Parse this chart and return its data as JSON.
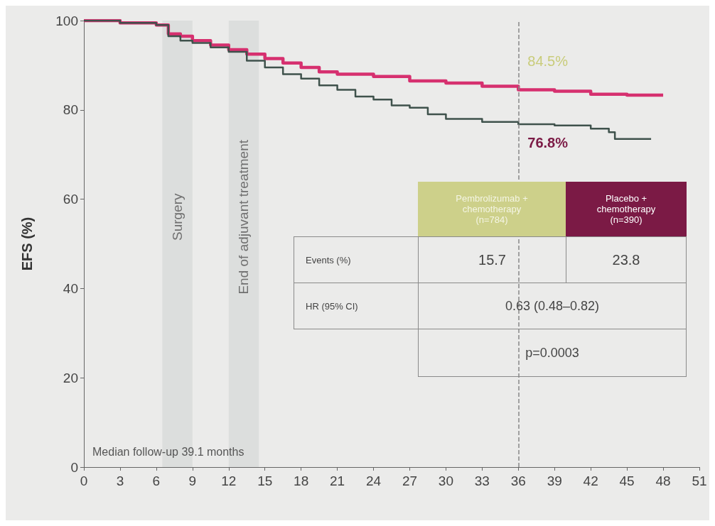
{
  "chart_data": {
    "type": "step",
    "ylabel": "EFS (%)",
    "xlim": [
      0,
      51
    ],
    "xticks": [
      0,
      3,
      6,
      9,
      12,
      15,
      18,
      21,
      24,
      27,
      30,
      33,
      36,
      39,
      42,
      45,
      48,
      51
    ],
    "ylim": [
      0,
      100
    ],
    "yticks": [
      0,
      20,
      40,
      60,
      80,
      100
    ],
    "grid": false,
    "series": [
      {
        "color": "#d6306f",
        "x": [
          0,
          3,
          6,
          7,
          8,
          9,
          10.5,
          12,
          13.5,
          15,
          16.5,
          18,
          19.5,
          21,
          24,
          27,
          30,
          33,
          36,
          39,
          42,
          45,
          48
        ],
        "values": [
          100,
          99.5,
          99,
          97,
          96.5,
          95.5,
          94.5,
          93.5,
          92.5,
          91.5,
          90.5,
          89.5,
          88.5,
          88,
          87.5,
          86.5,
          86,
          85.3,
          84.5,
          84.2,
          83.5,
          83.3,
          83.3
        ]
      },
      {
        "color": "#3f524c",
        "x": [
          0,
          3,
          6,
          7,
          8,
          9,
          10.5,
          12,
          13.5,
          15,
          16.5,
          18,
          19.5,
          21,
          22.5,
          24,
          25.5,
          27,
          28.5,
          30,
          33,
          36,
          39,
          42,
          43.5,
          44,
          47
        ],
        "values": [
          100,
          99.5,
          99,
          96.5,
          95.5,
          95,
          94,
          93,
          91,
          89.5,
          88,
          87,
          85.5,
          84.5,
          83,
          82.3,
          81,
          80.5,
          79,
          78,
          77.3,
          76.8,
          76.5,
          75.8,
          75,
          73.5,
          73.5
        ]
      }
    ],
    "bands": [
      {
        "axis": "x",
        "from": 6.5,
        "to": 9,
        "label": "Surgery",
        "color": "#dcdedd"
      },
      {
        "axis": "x",
        "from": 12,
        "to": 14.5,
        "label": "End of adjuvant treatment",
        "color": "#dcdedd"
      }
    ],
    "ref_lines": [
      {
        "axis": "x",
        "value": 36,
        "label": null,
        "color": "#888888",
        "line_style": "dashed"
      }
    ],
    "annotations": [
      {
        "text": "84.5%",
        "x": 36,
        "y": 84.5
      },
      {
        "text": "76.8%",
        "x": 36,
        "y": 76.8
      },
      "Pembrolizumab + chemotherapy (n=784)",
      "Placebo + chemotherapy (n=390)",
      "Events (%)",
      "15.7",
      "23.8",
      "HR (95% CI)",
      "0.63 (0.48–0.82)",
      "p=0.0003",
      "Median follow-up 39.1 months"
    ]
  }
}
